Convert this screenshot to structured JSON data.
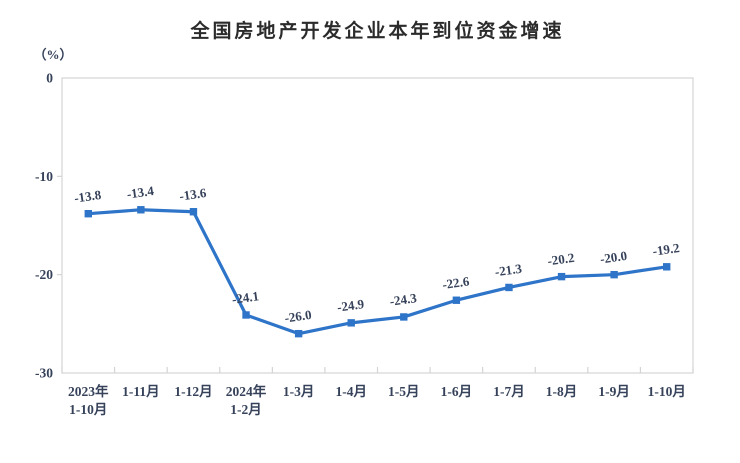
{
  "page": {
    "background": "#ffffff"
  },
  "chart_data": {
    "type": "line",
    "title": "全国房地产开发企业本年到位资金增速",
    "unit_label": "（%）",
    "categories": [
      "2023年\n1-10月",
      "1-11月",
      "1-12月",
      "2024年\n1-2月",
      "1-3月",
      "1-4月",
      "1-5月",
      "1-6月",
      "1-7月",
      "1-8月",
      "1-9月",
      "1-10月"
    ],
    "values": [
      -13.8,
      -13.4,
      -13.6,
      -24.1,
      -26.0,
      -24.9,
      -24.3,
      -22.6,
      -21.3,
      -20.2,
      -20.0,
      -19.2
    ],
    "data_labels": [
      "-13.8",
      "-13.4",
      "-13.6",
      "-24.1",
      "-26.0",
      "-24.9",
      "-24.3",
      "-22.6",
      "-21.3",
      "-20.2",
      "-20.0",
      "-19.2"
    ],
    "y_ticks": [
      0,
      -10,
      -20,
      -30
    ],
    "ylim": [
      -30,
      0
    ],
    "xlabel": "",
    "ylabel": "",
    "grid": "off",
    "legend": "none",
    "marker_shape": "square",
    "colors": {
      "line": "#2e74c8",
      "marker": "#2e74c8",
      "data_label_text": "#36425a",
      "axis_text": "#36425a",
      "title_text": "#2b2b2b",
      "plot_border": "#d4d4d4"
    }
  }
}
